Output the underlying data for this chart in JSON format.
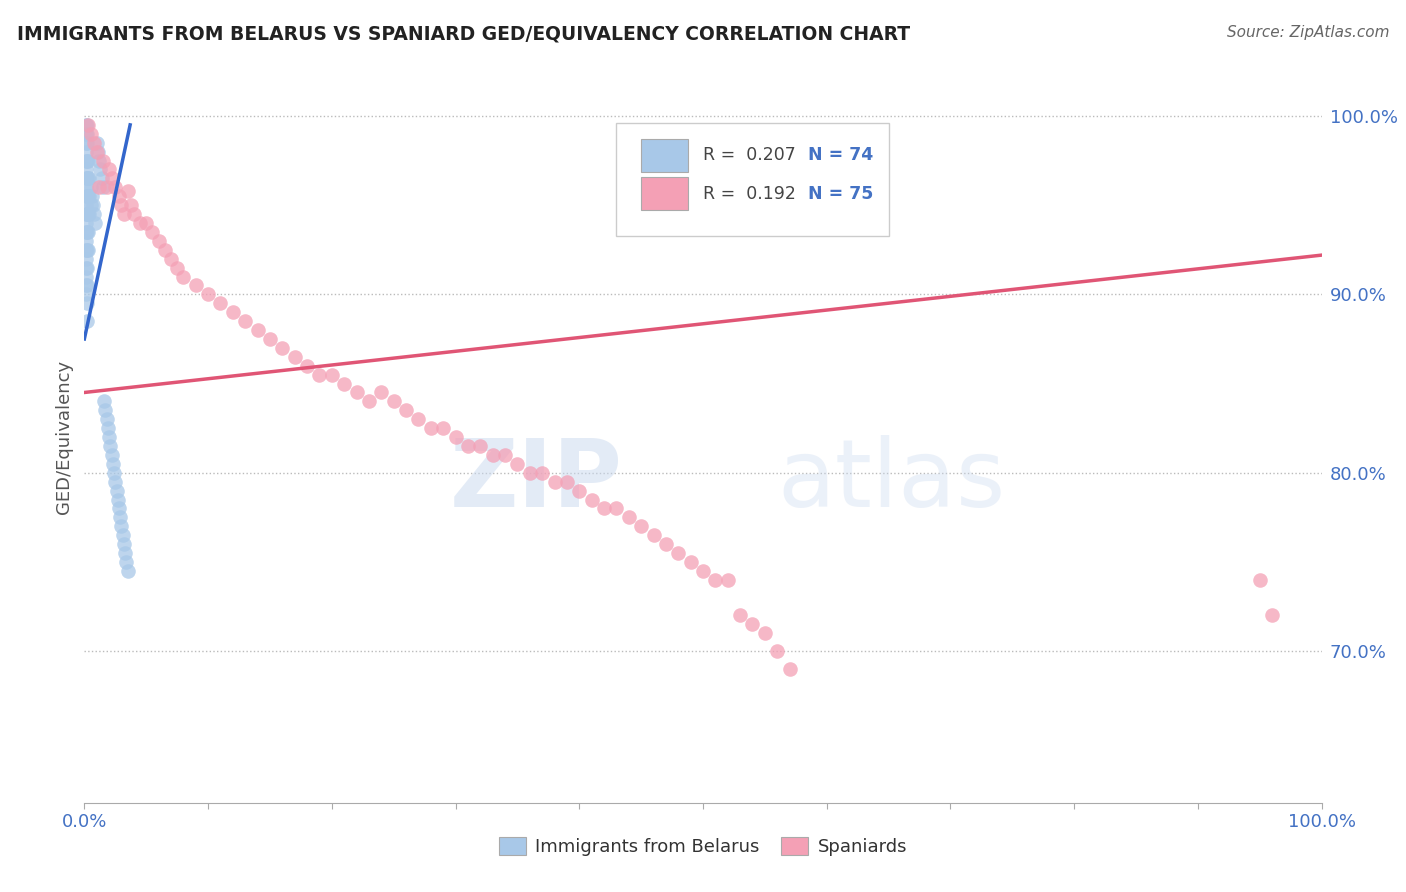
{
  "title": "IMMIGRANTS FROM BELARUS VS SPANIARD GED/EQUIVALENCY CORRELATION CHART",
  "source": "Source: ZipAtlas.com",
  "ylabel": "GED/Equivalency",
  "R_blue": 0.207,
  "N_blue": 74,
  "R_pink": 0.192,
  "N_pink": 75,
  "blue_scatter_x": [
    0.001,
    0.001,
    0.001,
    0.001,
    0.001,
    0.001,
    0.001,
    0.001,
    0.001,
    0.001,
    0.001,
    0.001,
    0.001,
    0.001,
    0.001,
    0.001,
    0.001,
    0.001,
    0.001,
    0.001,
    0.002,
    0.002,
    0.002,
    0.002,
    0.002,
    0.002,
    0.002,
    0.002,
    0.002,
    0.002,
    0.002,
    0.002,
    0.002,
    0.003,
    0.003,
    0.003,
    0.003,
    0.003,
    0.003,
    0.004,
    0.004,
    0.004,
    0.005,
    0.005,
    0.006,
    0.007,
    0.008,
    0.009,
    0.01,
    0.011,
    0.012,
    0.013,
    0.014,
    0.015,
    0.016,
    0.017,
    0.018,
    0.019,
    0.02,
    0.021,
    0.022,
    0.023,
    0.024,
    0.025,
    0.026,
    0.027,
    0.028,
    0.029,
    0.03,
    0.031,
    0.032,
    0.033,
    0.034,
    0.035
  ],
  "blue_scatter_y": [
    0.995,
    0.99,
    0.985,
    0.98,
    0.975,
    0.97,
    0.965,
    0.96,
    0.955,
    0.95,
    0.945,
    0.94,
    0.935,
    0.93,
    0.925,
    0.92,
    0.915,
    0.91,
    0.905,
    0.9,
    0.995,
    0.99,
    0.985,
    0.975,
    0.965,
    0.955,
    0.945,
    0.935,
    0.925,
    0.915,
    0.905,
    0.895,
    0.885,
    0.975,
    0.965,
    0.955,
    0.945,
    0.935,
    0.925,
    0.965,
    0.955,
    0.945,
    0.96,
    0.95,
    0.955,
    0.95,
    0.945,
    0.94,
    0.985,
    0.98,
    0.975,
    0.97,
    0.965,
    0.96,
    0.84,
    0.835,
    0.83,
    0.825,
    0.82,
    0.815,
    0.81,
    0.805,
    0.8,
    0.795,
    0.79,
    0.785,
    0.78,
    0.775,
    0.77,
    0.765,
    0.76,
    0.755,
    0.75,
    0.745
  ],
  "pink_scatter_x": [
    0.003,
    0.005,
    0.008,
    0.01,
    0.012,
    0.015,
    0.018,
    0.02,
    0.022,
    0.025,
    0.028,
    0.03,
    0.032,
    0.035,
    0.038,
    0.04,
    0.045,
    0.05,
    0.055,
    0.06,
    0.065,
    0.07,
    0.075,
    0.08,
    0.09,
    0.1,
    0.11,
    0.12,
    0.13,
    0.14,
    0.15,
    0.16,
    0.17,
    0.18,
    0.19,
    0.2,
    0.21,
    0.22,
    0.23,
    0.24,
    0.25,
    0.26,
    0.27,
    0.28,
    0.29,
    0.3,
    0.31,
    0.32,
    0.33,
    0.34,
    0.35,
    0.36,
    0.37,
    0.38,
    0.39,
    0.4,
    0.41,
    0.42,
    0.43,
    0.44,
    0.45,
    0.46,
    0.47,
    0.48,
    0.49,
    0.5,
    0.51,
    0.52,
    0.53,
    0.54,
    0.55,
    0.56,
    0.57,
    0.95,
    0.96
  ],
  "pink_scatter_y": [
    0.995,
    0.99,
    0.985,
    0.98,
    0.96,
    0.975,
    0.96,
    0.97,
    0.965,
    0.96,
    0.955,
    0.95,
    0.945,
    0.958,
    0.95,
    0.945,
    0.94,
    0.94,
    0.935,
    0.93,
    0.925,
    0.92,
    0.915,
    0.91,
    0.905,
    0.9,
    0.895,
    0.89,
    0.885,
    0.88,
    0.875,
    0.87,
    0.865,
    0.86,
    0.855,
    0.855,
    0.85,
    0.845,
    0.84,
    0.845,
    0.84,
    0.835,
    0.83,
    0.825,
    0.825,
    0.82,
    0.815,
    0.815,
    0.81,
    0.81,
    0.805,
    0.8,
    0.8,
    0.795,
    0.795,
    0.79,
    0.785,
    0.78,
    0.78,
    0.775,
    0.77,
    0.765,
    0.76,
    0.755,
    0.75,
    0.745,
    0.74,
    0.74,
    0.72,
    0.715,
    0.71,
    0.7,
    0.69,
    0.74,
    0.72
  ],
  "blue_color": "#a8c8e8",
  "pink_color": "#f4a0b5",
  "blue_line_color": "#3366cc",
  "pink_line_color": "#e05575",
  "watermark_zip": "ZIP",
  "watermark_atlas": "atlas",
  "background_color": "#ffffff",
  "xlim": [
    0.0,
    1.0
  ],
  "ylim_min": 0.615,
  "ylim_max": 1.025,
  "blue_line_x": [
    0.0,
    0.038
  ],
  "pink_line_x_start": 0.0,
  "pink_line_x_end": 1.0
}
